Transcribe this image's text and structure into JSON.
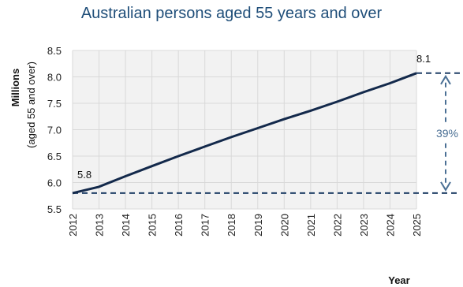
{
  "chart_data": {
    "type": "line",
    "title": "Australian persons aged 55 years and over",
    "xlabel": "Year",
    "ylabel": "Millions",
    "ylabel_sub": "(aged 55 and over)",
    "x": [
      2012,
      2013,
      2014,
      2015,
      2016,
      2017,
      2018,
      2019,
      2020,
      2021,
      2022,
      2023,
      2024,
      2025
    ],
    "series": [
      {
        "values": [
          5.8,
          5.92,
          6.12,
          6.31,
          6.5,
          6.68,
          6.86,
          7.03,
          7.2,
          7.36,
          7.53,
          7.71,
          7.88,
          8.07
        ]
      }
    ],
    "ylim": [
      5.5,
      8.5
    ],
    "yticks": [
      "5.5",
      "6.0",
      "6.5",
      "7.0",
      "7.5",
      "8.0",
      "8.5"
    ],
    "xticks": [
      "2012",
      "2013",
      "2014",
      "2015",
      "2016",
      "2017",
      "2018",
      "2019",
      "2020",
      "2021",
      "2022",
      "2023",
      "2024",
      "2025"
    ],
    "grid": true,
    "annotations": {
      "start_label": "5.8",
      "end_label": "8.1",
      "change_label": "39%"
    },
    "colors": {
      "line": "#13294b",
      "title": "#1f4e79",
      "reference": "#1f3f66",
      "change": "#4a6f94",
      "grid": "#d9d9d9",
      "plot_bg": "#f2f2f2"
    }
  }
}
